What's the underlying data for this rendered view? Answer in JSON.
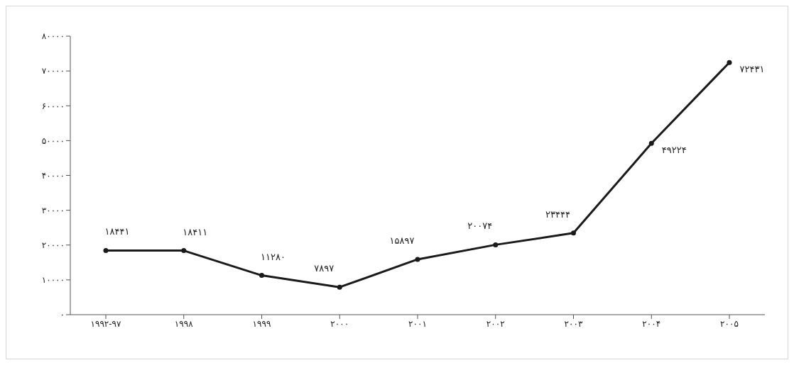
{
  "chart_data": {
    "type": "line",
    "categories": [
      "۱۹۹۲-۹۷",
      "۱۹۹۸",
      "۱۹۹۹",
      "۲۰۰۰",
      "۲۰۰۱",
      "۲۰۰۲",
      "۲۰۰۳",
      "۲۰۰۴",
      "۲۰۰۵"
    ],
    "series": [
      {
        "color": "#1a1a1a",
        "values": [
          18441,
          18411,
          11280,
          7897,
          15897,
          20074,
          23444,
          49224,
          72431
        ],
        "value_labels": [
          "۱۸۴۴۱",
          "۱۸۴۱۱",
          "۱۱۲۸۰",
          "۷۸۹۷",
          "۱۵۸۹۷",
          "۲۰۰۷۴",
          "۲۳۴۴۴",
          "۴۹۲۲۴",
          "۷۲۴۳۱"
        ]
      }
    ],
    "ylim": [
      0,
      80000
    ],
    "yticks": [
      {
        "value": 0,
        "label": "۰"
      },
      {
        "value": 10000,
        "label": "۱۰۰۰۰"
      },
      {
        "value": 20000,
        "label": "۲۰۰۰۰"
      },
      {
        "value": 30000,
        "label": "۳۰۰۰۰"
      },
      {
        "value": 40000,
        "label": "۴۰۰۰۰"
      },
      {
        "value": 50000,
        "label": "۵۰۰۰۰"
      },
      {
        "value": 60000,
        "label": "۶۰۰۰۰"
      },
      {
        "value": 70000,
        "label": "۷۰۰۰۰"
      },
      {
        "value": 80000,
        "label": "۸۰۰۰۰"
      }
    ],
    "grid": false,
    "legend": false,
    "marker": "circle",
    "line_style": "solid"
  }
}
